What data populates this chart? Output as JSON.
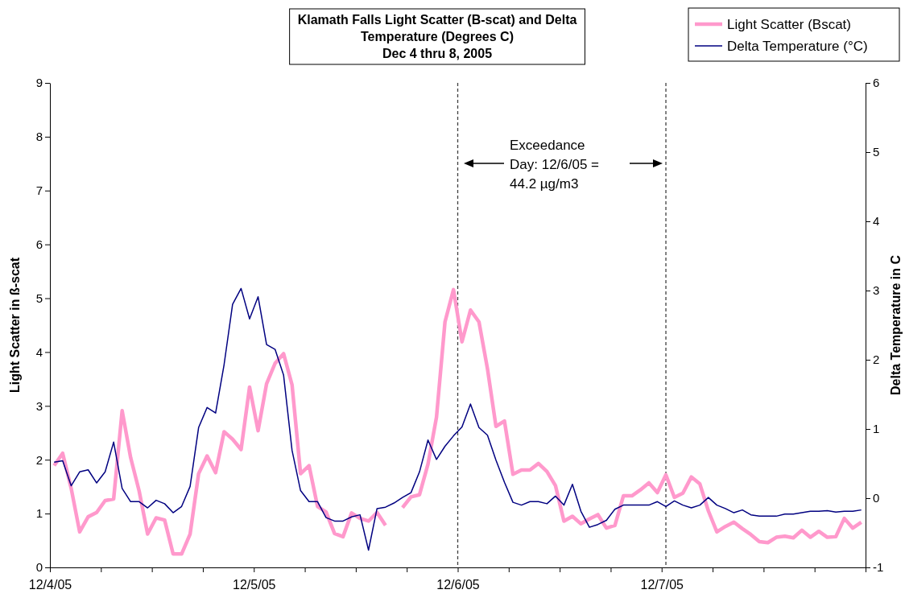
{
  "chart_data": {
    "type": "line",
    "title": "Klamath Falls Light Scatter (B-scat) and Delta Temperature (Degrees C)",
    "subtitle": "Dec 4 thru 8, 2005",
    "ylabel": "Light Scatter in ß-scat",
    "y2label": "Delta Temperature in C",
    "annotations": [
      "Exceedance\nDay: 12/6/05 =\n44.2 µg/m3"
    ],
    "x": [
      "2005-12-04T00:30",
      "2005-12-04T01:30",
      "2005-12-04T02:30",
      "2005-12-04T03:30",
      "2005-12-04T04:30",
      "2005-12-04T05:30",
      "2005-12-04T06:30",
      "2005-12-04T07:30",
      "2005-12-04T08:30",
      "2005-12-04T09:30",
      "2005-12-04T10:30",
      "2005-12-04T11:30",
      "2005-12-04T12:30",
      "2005-12-04T13:30",
      "2005-12-04T14:30",
      "2005-12-04T15:30",
      "2005-12-04T16:30",
      "2005-12-04T17:30",
      "2005-12-04T18:30",
      "2005-12-04T19:30",
      "2005-12-04T20:30",
      "2005-12-04T21:30",
      "2005-12-04T22:30",
      "2005-12-04T23:30",
      "2005-12-05T00:30",
      "2005-12-05T01:30",
      "2005-12-05T02:30",
      "2005-12-05T03:30",
      "2005-12-05T04:30",
      "2005-12-05T05:30",
      "2005-12-05T06:30",
      "2005-12-05T07:30",
      "2005-12-05T08:30",
      "2005-12-05T09:30",
      "2005-12-05T10:30",
      "2005-12-05T11:30",
      "2005-12-05T12:30",
      "2005-12-05T13:30",
      "2005-12-05T14:30",
      "2005-12-05T15:30",
      "2005-12-05T16:30",
      "2005-12-05T17:30",
      "2005-12-05T18:30",
      "2005-12-05T19:30",
      "2005-12-05T20:30",
      "2005-12-05T21:30",
      "2005-12-05T22:30",
      "2005-12-05T23:30",
      "2005-12-06T00:30",
      "2005-12-06T01:30",
      "2005-12-06T02:30",
      "2005-12-06T03:30",
      "2005-12-06T04:30",
      "2005-12-06T05:30",
      "2005-12-06T06:30",
      "2005-12-06T07:30",
      "2005-12-06T08:30",
      "2005-12-06T09:30",
      "2005-12-06T10:30",
      "2005-12-06T11:30",
      "2005-12-06T12:30",
      "2005-12-06T13:30",
      "2005-12-06T14:30",
      "2005-12-06T15:30",
      "2005-12-06T16:30",
      "2005-12-06T17:30",
      "2005-12-06T18:30",
      "2005-12-06T19:30",
      "2005-12-06T20:30",
      "2005-12-06T21:30",
      "2005-12-06T22:30",
      "2005-12-06T23:30",
      "2005-12-07T00:30",
      "2005-12-07T01:30",
      "2005-12-07T02:30",
      "2005-12-07T03:30",
      "2005-12-07T04:30",
      "2005-12-07T05:30",
      "2005-12-07T06:30",
      "2005-12-07T07:30",
      "2005-12-07T08:30",
      "2005-12-07T09:30",
      "2005-12-07T10:30",
      "2005-12-07T11:30",
      "2005-12-07T12:30",
      "2005-12-07T13:30",
      "2005-12-07T14:30",
      "2005-12-07T15:30",
      "2005-12-07T16:30",
      "2005-12-07T17:30",
      "2005-12-07T18:30",
      "2005-12-07T19:30",
      "2005-12-07T20:30",
      "2005-12-07T21:30",
      "2005-12-07T22:30",
      "2005-12-07T23:30"
    ],
    "series": [
      {
        "name": "Light Scatter (Bscat)",
        "color": "#ff99cc",
        "values": [
          1.89,
          2.12,
          1.47,
          0.66,
          0.94,
          1.02,
          1.24,
          1.27,
          2.91,
          2.04,
          1.42,
          0.62,
          0.92,
          0.88,
          0.25,
          0.25,
          0.62,
          1.74,
          2.07,
          1.76,
          2.52,
          2.38,
          2.19,
          3.35,
          2.54,
          3.41,
          3.79,
          3.97,
          3.39,
          1.74,
          1.89,
          1.13,
          1.03,
          0.63,
          0.57,
          1.01,
          0.91,
          0.86,
          1.02,
          0.78,
          null,
          1.11,
          1.31,
          1.35,
          1.92,
          2.79,
          4.56,
          5.16,
          4.19,
          4.78,
          4.56,
          3.69,
          2.62,
          2.72,
          1.73,
          1.81,
          1.81,
          1.93,
          1.78,
          1.52,
          0.86,
          0.95,
          0.81,
          0.9,
          0.98,
          0.73,
          0.78,
          1.33,
          1.33,
          1.44,
          1.57,
          1.39,
          1.72,
          1.3,
          1.38,
          1.68,
          1.55,
          1.05,
          0.66,
          0.76,
          0.84,
          0.72,
          0.61,
          0.48,
          0.46,
          0.56,
          0.58,
          0.55,
          0.69,
          0.56,
          0.67,
          0.56,
          0.57,
          0.91,
          0.73,
          0.84
        ]
      },
      {
        "name": "Delta Temperature (°C)",
        "color": "#000080",
        "axis": "y2",
        "values": [
          0.52,
          0.54,
          0.18,
          0.38,
          0.41,
          0.22,
          0.38,
          0.81,
          0.14,
          -0.05,
          -0.05,
          -0.14,
          -0.03,
          -0.08,
          -0.21,
          -0.12,
          0.17,
          1.02,
          1.31,
          1.23,
          1.93,
          2.8,
          3.03,
          2.59,
          2.91,
          2.22,
          2.15,
          1.78,
          0.69,
          0.11,
          -0.05,
          -0.05,
          -0.28,
          -0.33,
          -0.33,
          -0.27,
          -0.24,
          -0.75,
          -0.15,
          -0.13,
          -0.07,
          0.01,
          0.08,
          0.38,
          0.84,
          0.56,
          0.75,
          0.9,
          1.03,
          1.36,
          1.02,
          0.91,
          0.55,
          0.23,
          -0.06,
          -0.1,
          -0.05,
          -0.05,
          -0.08,
          0.03,
          -0.1,
          0.2,
          -0.19,
          -0.42,
          -0.38,
          -0.32,
          -0.16,
          -0.1,
          -0.1,
          -0.1,
          -0.1,
          -0.05,
          -0.12,
          -0.04,
          -0.1,
          -0.14,
          -0.1,
          0.01,
          -0.1,
          -0.15,
          -0.21,
          -0.17,
          -0.24,
          -0.26,
          -0.26,
          -0.26,
          -0.23,
          -0.23,
          -0.21,
          -0.19,
          -0.19,
          -0.18,
          -0.2,
          -0.19,
          -0.19,
          -0.17
        ]
      }
    ],
    "xlim": [
      "2005-12-04T00:00",
      "2005-12-08T00:00"
    ],
    "xticks": [
      {
        "value": "2005-12-04T00:00",
        "label": "12/4/05"
      },
      {
        "value": "2005-12-04T06:00",
        "label": null
      },
      {
        "value": "2005-12-04T12:00",
        "label": null
      },
      {
        "value": "2005-12-04T18:00",
        "label": null
      },
      {
        "value": "2005-12-05T00:00",
        "label": "12/5/05"
      },
      {
        "value": "2005-12-05T06:00",
        "label": null
      },
      {
        "value": "2005-12-05T12:00",
        "label": null
      },
      {
        "value": "2005-12-05T18:00",
        "label": null
      },
      {
        "value": "2005-12-06T00:00",
        "label": "12/6/05"
      },
      {
        "value": "2005-12-06T06:00",
        "label": null
      },
      {
        "value": "2005-12-06T12:00",
        "label": null
      },
      {
        "value": "2005-12-06T18:00",
        "label": null
      },
      {
        "value": "2005-12-07T00:00",
        "label": "12/7/05"
      },
      {
        "value": "2005-12-07T06:00",
        "label": null
      },
      {
        "value": "2005-12-07T12:00",
        "label": null
      },
      {
        "value": "2005-12-07T18:00",
        "label": null
      },
      {
        "value": "2005-12-08T00:00",
        "label": null
      }
    ],
    "ylim": [
      0,
      9
    ],
    "yticks": [
      0,
      1,
      2,
      3,
      4,
      5,
      6,
      7,
      8,
      9
    ],
    "y2lim": [
      -1,
      6
    ],
    "y2ticks": [
      -1,
      0,
      1,
      2,
      3,
      4,
      5,
      6
    ],
    "ref_lines": [
      {
        "axis": "x",
        "value": "2005-12-06T00:00",
        "color": "#404040",
        "line_style": "dashed"
      },
      {
        "axis": "x",
        "value": "2005-12-07T00:30",
        "color": "#404040",
        "line_style": "dashed"
      }
    ],
    "legend": "top right",
    "marker": "none",
    "line_style": "solid"
  }
}
